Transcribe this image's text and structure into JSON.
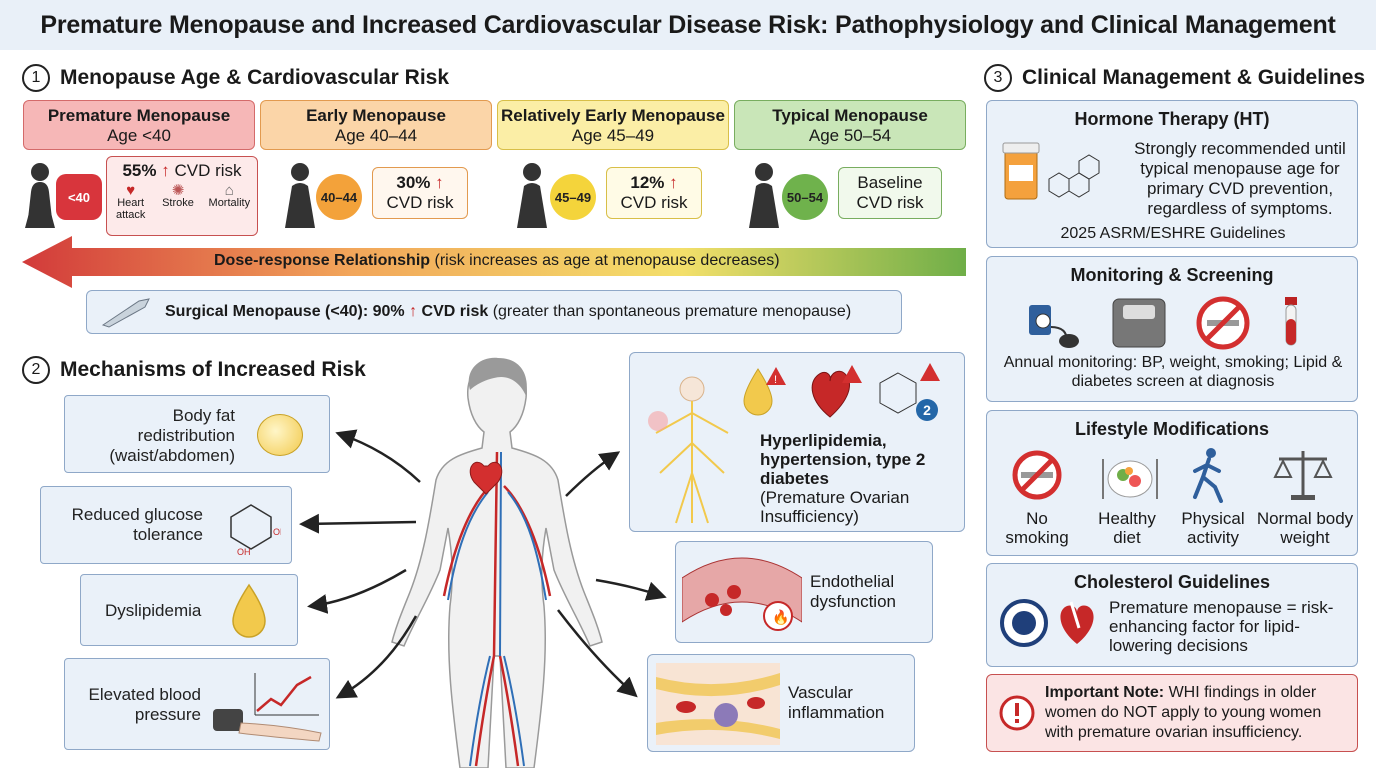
{
  "title": "Premature Menopause and Increased Cardiovascular Disease Risk: Pathophysiology and Clinical Management",
  "section1": {
    "num": "1",
    "heading": "Menopause Age & Cardiovascular Risk",
    "stages": [
      {
        "name": "Premature Menopause",
        "age": "Age <40",
        "badge": "<40",
        "risk_pct": "55%",
        "risk_text": "CVD risk",
        "outcomes": [
          "Heart attack",
          "Stroke",
          "Mortality"
        ]
      },
      {
        "name": "Early Menopause",
        "age": "Age 40–44",
        "badge": "40–44",
        "risk_pct": "30%",
        "risk_text": "CVD risk"
      },
      {
        "name": "Relatively Early Menopause",
        "age": "Age 45–49",
        "badge": "45–49",
        "risk_pct": "12%",
        "risk_text": "CVD risk"
      },
      {
        "name": "Typical Menopause",
        "age": "Age 50–54",
        "badge": "50–54",
        "risk_pct": "Baseline",
        "risk_text": "CVD risk"
      }
    ],
    "dose_response_bold": "Dose-response Relationship",
    "dose_response_rest": "(risk increases as age at menopause decreases)",
    "surgical_bold": "Surgical Menopause (<40): 90%",
    "surgical_bold2": "CVD risk",
    "surgical_rest": "(greater than spontaneous premature menopause)"
  },
  "section2": {
    "num": "2",
    "heading": "Mechanisms of Increased Risk",
    "left_items": [
      "Body fat redistribution (waist/abdomen)",
      "Reduced glucose tolerance",
      "Dyslipidemia",
      "Elevated blood pressure"
    ],
    "poi_bold": "Hyperlipidemia, hypertension, type 2 diabetes",
    "poi_rest": "(Premature Ovarian Insufficiency)",
    "diabetes_badge": "2",
    "endothelial": "Endothelial dysfunction",
    "vascular": "Vascular inflammation"
  },
  "section3": {
    "num": "3",
    "heading": "Clinical Management & Guidelines",
    "ht_title": "Hormone Therapy (HT)",
    "ht_text": "Strongly recommended until typical menopause age for primary CVD prevention, regardless of symptoms.",
    "ht_source": "2025 ASRM/ESHRE Guidelines",
    "monitor_title": "Monitoring & Screening",
    "monitor_text": "Annual monitoring: BP, weight, smoking; Lipid & diabetes screen at diagnosis",
    "lifestyle_title": "Lifestyle Modifications",
    "lifestyle_items": [
      "No smoking",
      "Healthy diet",
      "Physical activity",
      "Normal body weight"
    ],
    "chol_title": "Cholesterol Guidelines",
    "chol_text": "Premature menopause = risk-enhancing factor for lipid-lowering decisions",
    "note_bold": "Important Note:",
    "note_text": "WHI findings in older women do NOT apply to young women with premature ovarian insufficiency."
  },
  "colors": {
    "premature": "#f6b7b7",
    "early": "#fbd5a8",
    "rel_early": "#fbeea6",
    "typical": "#c9e6b8",
    "alert": "#d32f2f"
  }
}
